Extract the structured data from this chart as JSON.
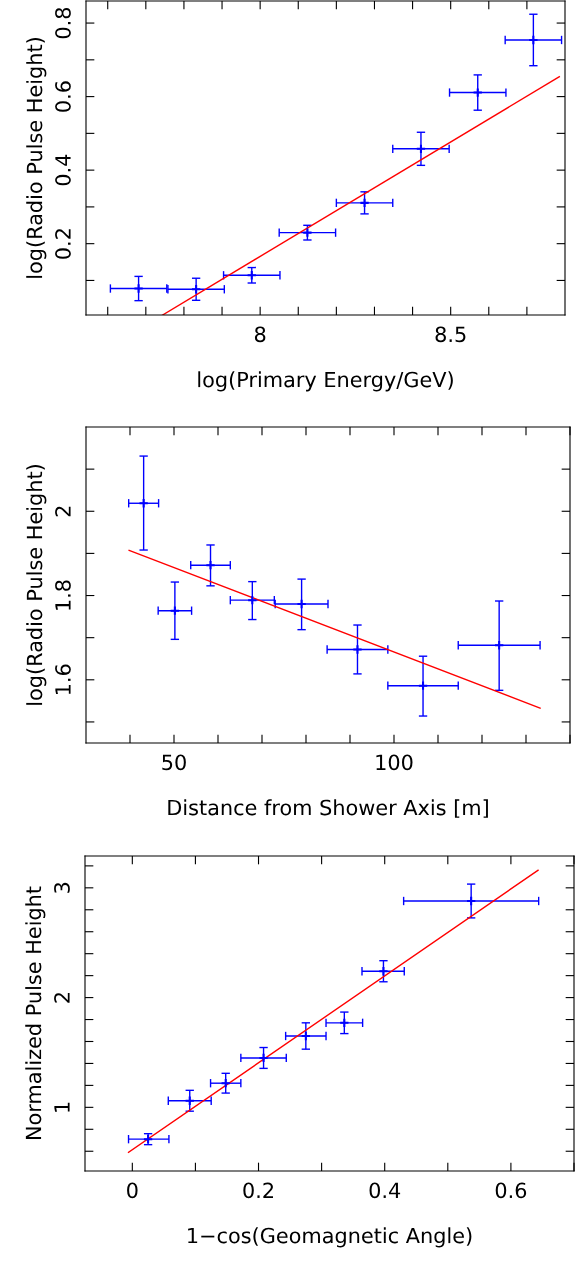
{
  "chart_data": [
    {
      "type": "scatter",
      "xlabel": "log(Primary Energy/GeV)",
      "ylabel": "log(Radio Pulse Height)",
      "grid": false,
      "legend": false,
      "xlim": [
        7.543,
        8.8
      ],
      "ylim": [
        0.006,
        0.86
      ],
      "xticks": [
        {
          "value": 7.6,
          "label": null
        },
        {
          "value": 7.7,
          "label": null
        },
        {
          "value": 7.8,
          "label": null
        },
        {
          "value": 7.9,
          "label": null
        },
        8,
        {
          "value": 8.1,
          "label": null
        },
        {
          "value": 8.2,
          "label": null
        },
        {
          "value": 8.3,
          "label": null
        },
        {
          "value": 8.4,
          "label": null
        },
        8.5,
        {
          "value": 8.6,
          "label": null
        },
        {
          "value": 8.7,
          "label": null
        }
      ],
      "yticks": [
        {
          "value": 0.1,
          "label": null
        },
        0.2,
        {
          "value": 0.3,
          "label": null
        },
        0.4,
        {
          "value": 0.5,
          "label": null
        },
        0.6,
        {
          "value": 0.7,
          "label": null
        },
        0.8
      ],
      "series": [
        {
          "marker": "cross",
          "color": "#0000ff",
          "x": [
            7.681,
            7.832,
            7.978,
            8.124,
            8.274,
            8.422,
            8.571,
            8.717
          ],
          "values": [
            0.078,
            0.076,
            0.114,
            0.23,
            0.311,
            0.458,
            0.611,
            0.754
          ],
          "errors": [
            0.033,
            0.03,
            0.021,
            0.02,
            0.03,
            0.045,
            0.048,
            0.07
          ],
          "xerrors": [
            0.074,
            0.074,
            0.074,
            0.074,
            0.074,
            0.074,
            0.074,
            0.074
          ]
        },
        {
          "type": "line",
          "color": "#ff0000",
          "x": [
            7.744,
            8.785
          ],
          "values": [
            0.006,
            0.654
          ]
        }
      ]
    },
    {
      "type": "scatter",
      "xlabel": "Distance from Shower Axis [m]",
      "ylabel": "log(Radio Pulse Height)",
      "grid": false,
      "legend": false,
      "xlim": [
        30,
        140
      ],
      "ylim": [
        1.45,
        2.2
      ],
      "xticks": [
        {
          "value": 40,
          "label": null
        },
        50,
        {
          "value": 60,
          "label": null
        },
        {
          "value": 70,
          "label": null
        },
        {
          "value": 80,
          "label": null
        },
        {
          "value": 90,
          "label": null
        },
        100,
        {
          "value": 110,
          "label": null
        },
        {
          "value": 120,
          "label": null
        },
        {
          "value": 130,
          "label": null
        },
        {
          "value": 140,
          "label": null
        }
      ],
      "yticks": [
        {
          "value": 1.5,
          "label": null
        },
        1.6,
        {
          "value": 1.7,
          "label": null
        },
        1.8,
        {
          "value": 1.9,
          "label": null
        },
        2,
        {
          "value": 2.1,
          "label": null
        }
      ],
      "series": [
        {
          "marker": "cross",
          "color": "#0000ff",
          "x": [
            43.1,
            50.2,
            58.3,
            67.8,
            79.0,
            91.7,
            106.6,
            123.9
          ],
          "values": [
            2.019,
            1.764,
            1.872,
            1.789,
            1.78,
            1.672,
            1.586,
            1.682
          ],
          "errors": [
            [
              1.908,
              2.131
            ],
            [
              1.696,
              1.832
            ],
            [
              1.823,
              1.92
            ],
            [
              1.743,
              1.833
            ],
            [
              1.719,
              1.839
            ],
            [
              1.614,
              1.73
            ],
            [
              1.514,
              1.656
            ],
            [
              1.575,
              1.787
            ]
          ],
          "xerrors": [
            3.4,
            3.8,
            4.5,
            5.0,
            6.0,
            6.9,
            8.0,
            9.3
          ]
        },
        {
          "type": "line",
          "color": "#ff0000",
          "x": [
            39.8,
            133.2
          ],
          "values": [
            1.907,
            1.533
          ]
        }
      ]
    },
    {
      "type": "scatter",
      "xlabel": "1−cos(Geomagnetic Angle)",
      "ylabel": "Normalized Pulse Height",
      "grid": false,
      "legend": false,
      "xlim": [
        -0.075,
        0.7
      ],
      "ylim": [
        0.42,
        3.29
      ],
      "xticks": [
        0,
        {
          "value": 0.1,
          "label": null
        },
        0.2,
        {
          "value": 0.3,
          "label": null
        },
        0.4,
        {
          "value": 0.5,
          "label": null
        },
        0.6,
        {
          "value": 0.7,
          "label": null
        }
      ],
      "yticks": [
        {
          "value": 0.6,
          "label": null
        },
        {
          "value": 0.8,
          "label": null
        },
        1,
        {
          "value": 1.2,
          "label": null
        },
        {
          "value": 1.4,
          "label": null
        },
        {
          "value": 1.6,
          "label": null
        },
        {
          "value": 1.8,
          "label": null
        },
        2,
        {
          "value": 2.2,
          "label": null
        },
        {
          "value": 2.4,
          "label": null
        },
        {
          "value": 2.6,
          "label": null
        },
        {
          "value": 2.8,
          "label": null
        },
        3,
        {
          "value": 3.2,
          "label": null
        }
      ],
      "series": [
        {
          "marker": "cross",
          "color": "#0000ff",
          "x": [
            0.025,
            0.091,
            0.148,
            0.208,
            0.275,
            0.336,
            0.398,
            0.537
          ],
          "values": [
            0.71,
            1.06,
            1.22,
            1.45,
            1.65,
            1.77,
            2.24,
            2.88
          ],
          "errors": [
            0.05,
            0.095,
            0.09,
            0.095,
            0.12,
            0.098,
            0.096,
            0.154
          ],
          "xerrors": [
            [
              -0.006,
              0.058
            ],
            [
              0.057,
              0.125
            ],
            [
              0.124,
              0.172
            ],
            [
              0.172,
              0.244
            ],
            [
              0.243,
              0.307
            ],
            [
              0.307,
              0.365
            ],
            [
              0.364,
              0.431
            ],
            [
              0.43,
              0.644
            ]
          ]
        },
        {
          "type": "line",
          "color": "#ff0000",
          "x": [
            -0.006,
            0.643
          ],
          "values": [
            0.59,
            3.16
          ]
        }
      ]
    }
  ]
}
